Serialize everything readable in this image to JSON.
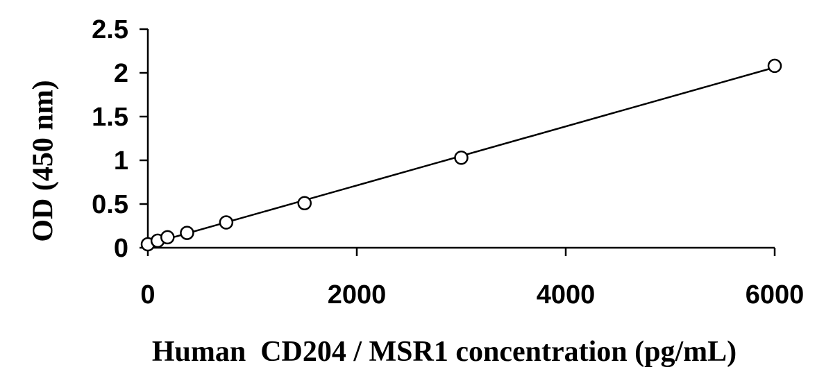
{
  "chart_data": {
    "type": "scatter",
    "title": "",
    "xlabel": "Human  CD204 / MSR1 concentration (pg/mL)",
    "ylabel": "OD (450 nm)",
    "xlim": [
      0,
      6000
    ],
    "ylim": [
      0,
      2.5
    ],
    "xticks": [
      0,
      2000,
      4000,
      6000
    ],
    "xtick_labels": [
      "0",
      "2000",
      "4000",
      "6000"
    ],
    "yticks": [
      0,
      0.5,
      1,
      1.5,
      2,
      2.5
    ],
    "ytick_labels": [
      "0",
      "0.5",
      "1",
      "1.5",
      "2",
      "2.5"
    ],
    "grid": false,
    "legend": "none",
    "series": [
      {
        "x": [
          0,
          94,
          188,
          375,
          750,
          1500,
          3000,
          6000
        ],
        "y": [
          0.04,
          0.08,
          0.12,
          0.17,
          0.29,
          0.51,
          1.03,
          2.08
        ],
        "marker": "open-circle",
        "trendline": "linear",
        "color": "#000000"
      }
    ]
  }
}
